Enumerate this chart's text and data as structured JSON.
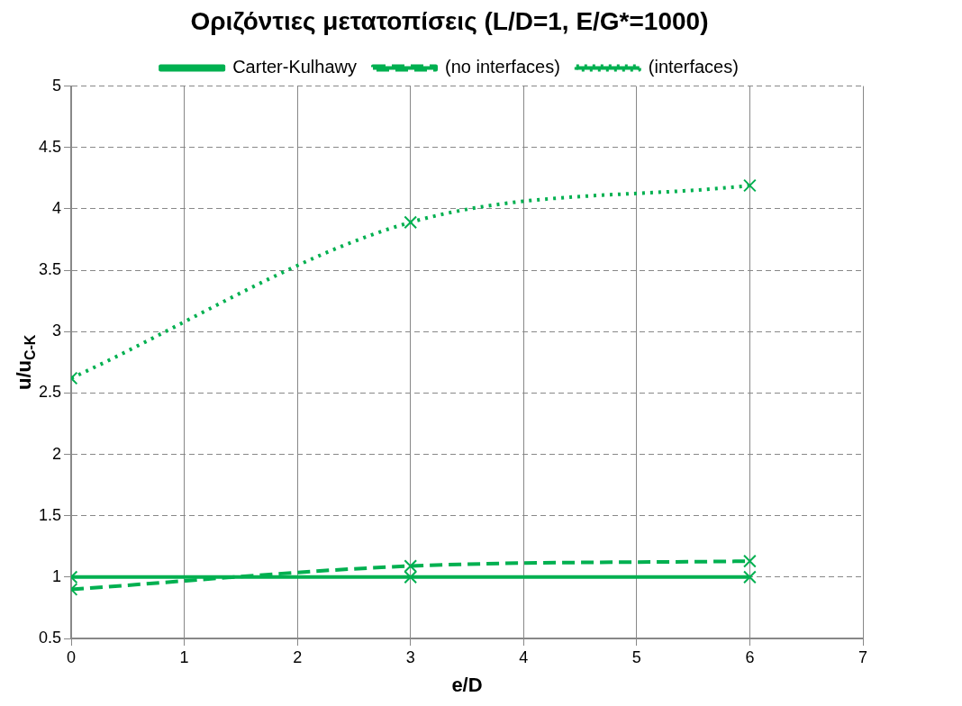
{
  "chart_data": {
    "type": "line",
    "title": "Οριζόντιες μετατοπίσεις (L/D=1, E/G*=1000)",
    "xlabel": "e/D",
    "ylabel": "u/u$_{C-K}$",
    "x": [
      0,
      3,
      6
    ],
    "series": [
      {
        "name": "Carter-Kulhawy",
        "color": "#00b050",
        "values": [
          1,
          1,
          1
        ],
        "marker": "cross",
        "line_style": "solid"
      },
      {
        "name": "(no interfaces)",
        "color": "#00b050",
        "values": [
          0.9,
          1.09,
          1.13
        ],
        "marker": "cross",
        "line_style": "dashed"
      },
      {
        "name": "(interfaces)",
        "color": "#00b050",
        "values": [
          2.62,
          3.89,
          4.19
        ],
        "marker": "cross",
        "line_style": "dotted"
      }
    ],
    "xlim": [
      0,
      7
    ],
    "xticks": [
      0,
      1,
      2,
      3,
      4,
      5,
      6,
      7
    ],
    "ylim": [
      0.5,
      5
    ],
    "yticks": [
      0.5,
      1,
      1.5,
      2,
      2.5,
      3,
      3.5,
      4,
      4.5,
      5
    ],
    "grid": true,
    "legend": "top"
  }
}
